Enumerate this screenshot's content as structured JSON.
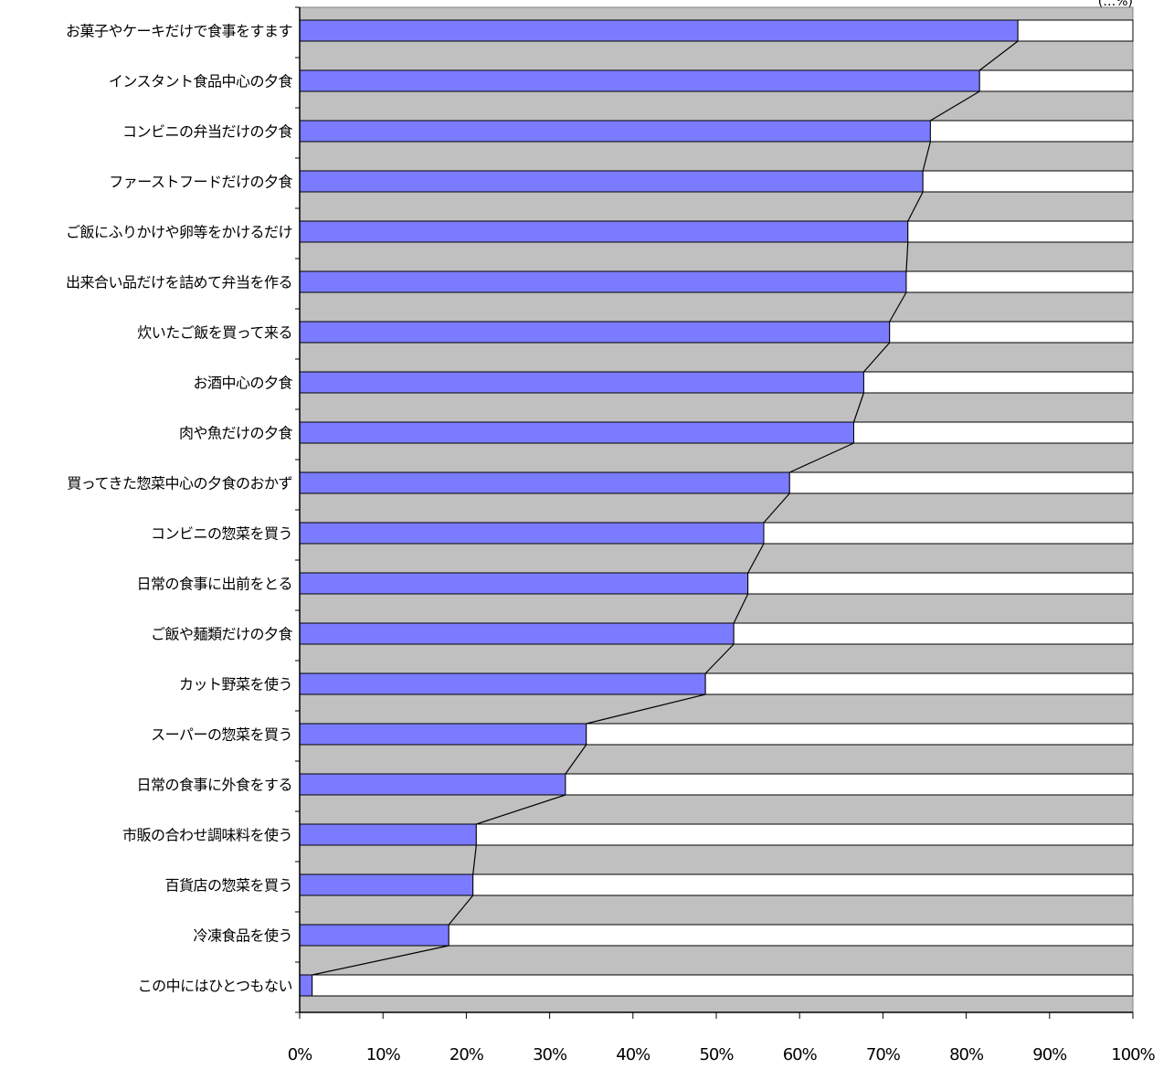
{
  "chart_data": {
    "type": "bar",
    "stacked_percent": true,
    "orientation": "horizontal",
    "categories": [
      "お菓子やケーキだけで食事をすます",
      "インスタント食品中心の夕食",
      "コンビニの弁当だけの夕食",
      "ファーストフードだけの夕食",
      "ご飯にふりかけや卵等をかけるだけ",
      "出来合い品だけを詰めて弁当を作る",
      "炊いたご飯を買って来る",
      "お酒中心の夕食",
      "肉や魚だけの夕食",
      "買ってきた惣菜中心の夕食のおかず",
      "コンビニの惣菜を買う",
      "日常の食事に出前をとる",
      "ご飯や麺類だけの夕食",
      "カット野菜を使う",
      "スーパーの惣菜を買う",
      "日常の食事に外食をする",
      "市販の合わせ調味料を使う",
      "百貨店の惣菜を買う",
      "冷凍食品を使う",
      "この中にはひとつもない"
    ],
    "series": [
      {
        "values": [
          86.2,
          81.6,
          75.7,
          74.8,
          73.0,
          72.8,
          70.8,
          67.7,
          66.5,
          58.8,
          55.7,
          53.8,
          52.1,
          48.7,
          34.4,
          31.9,
          21.2,
          20.8,
          17.9,
          1.5
        ],
        "color": "#7b7bff"
      },
      {
        "values": [
          13.8,
          18.4,
          24.3,
          25.2,
          27.0,
          27.2,
          29.2,
          32.3,
          33.5,
          41.2,
          44.3,
          46.2,
          47.9,
          51.3,
          65.6,
          68.1,
          78.8,
          79.2,
          82.1,
          98.5
        ],
        "color": "#ffffff"
      }
    ],
    "xlim": [
      0,
      100
    ],
    "x_ticks": [
      "0%",
      "10%",
      "20%",
      "30%",
      "40%",
      "50%",
      "60%",
      "70%",
      "80%",
      "90%",
      "100%"
    ],
    "unit_label": "(…%)",
    "plot_background": "#c0c0c0",
    "series_lines": true,
    "grid": false
  }
}
